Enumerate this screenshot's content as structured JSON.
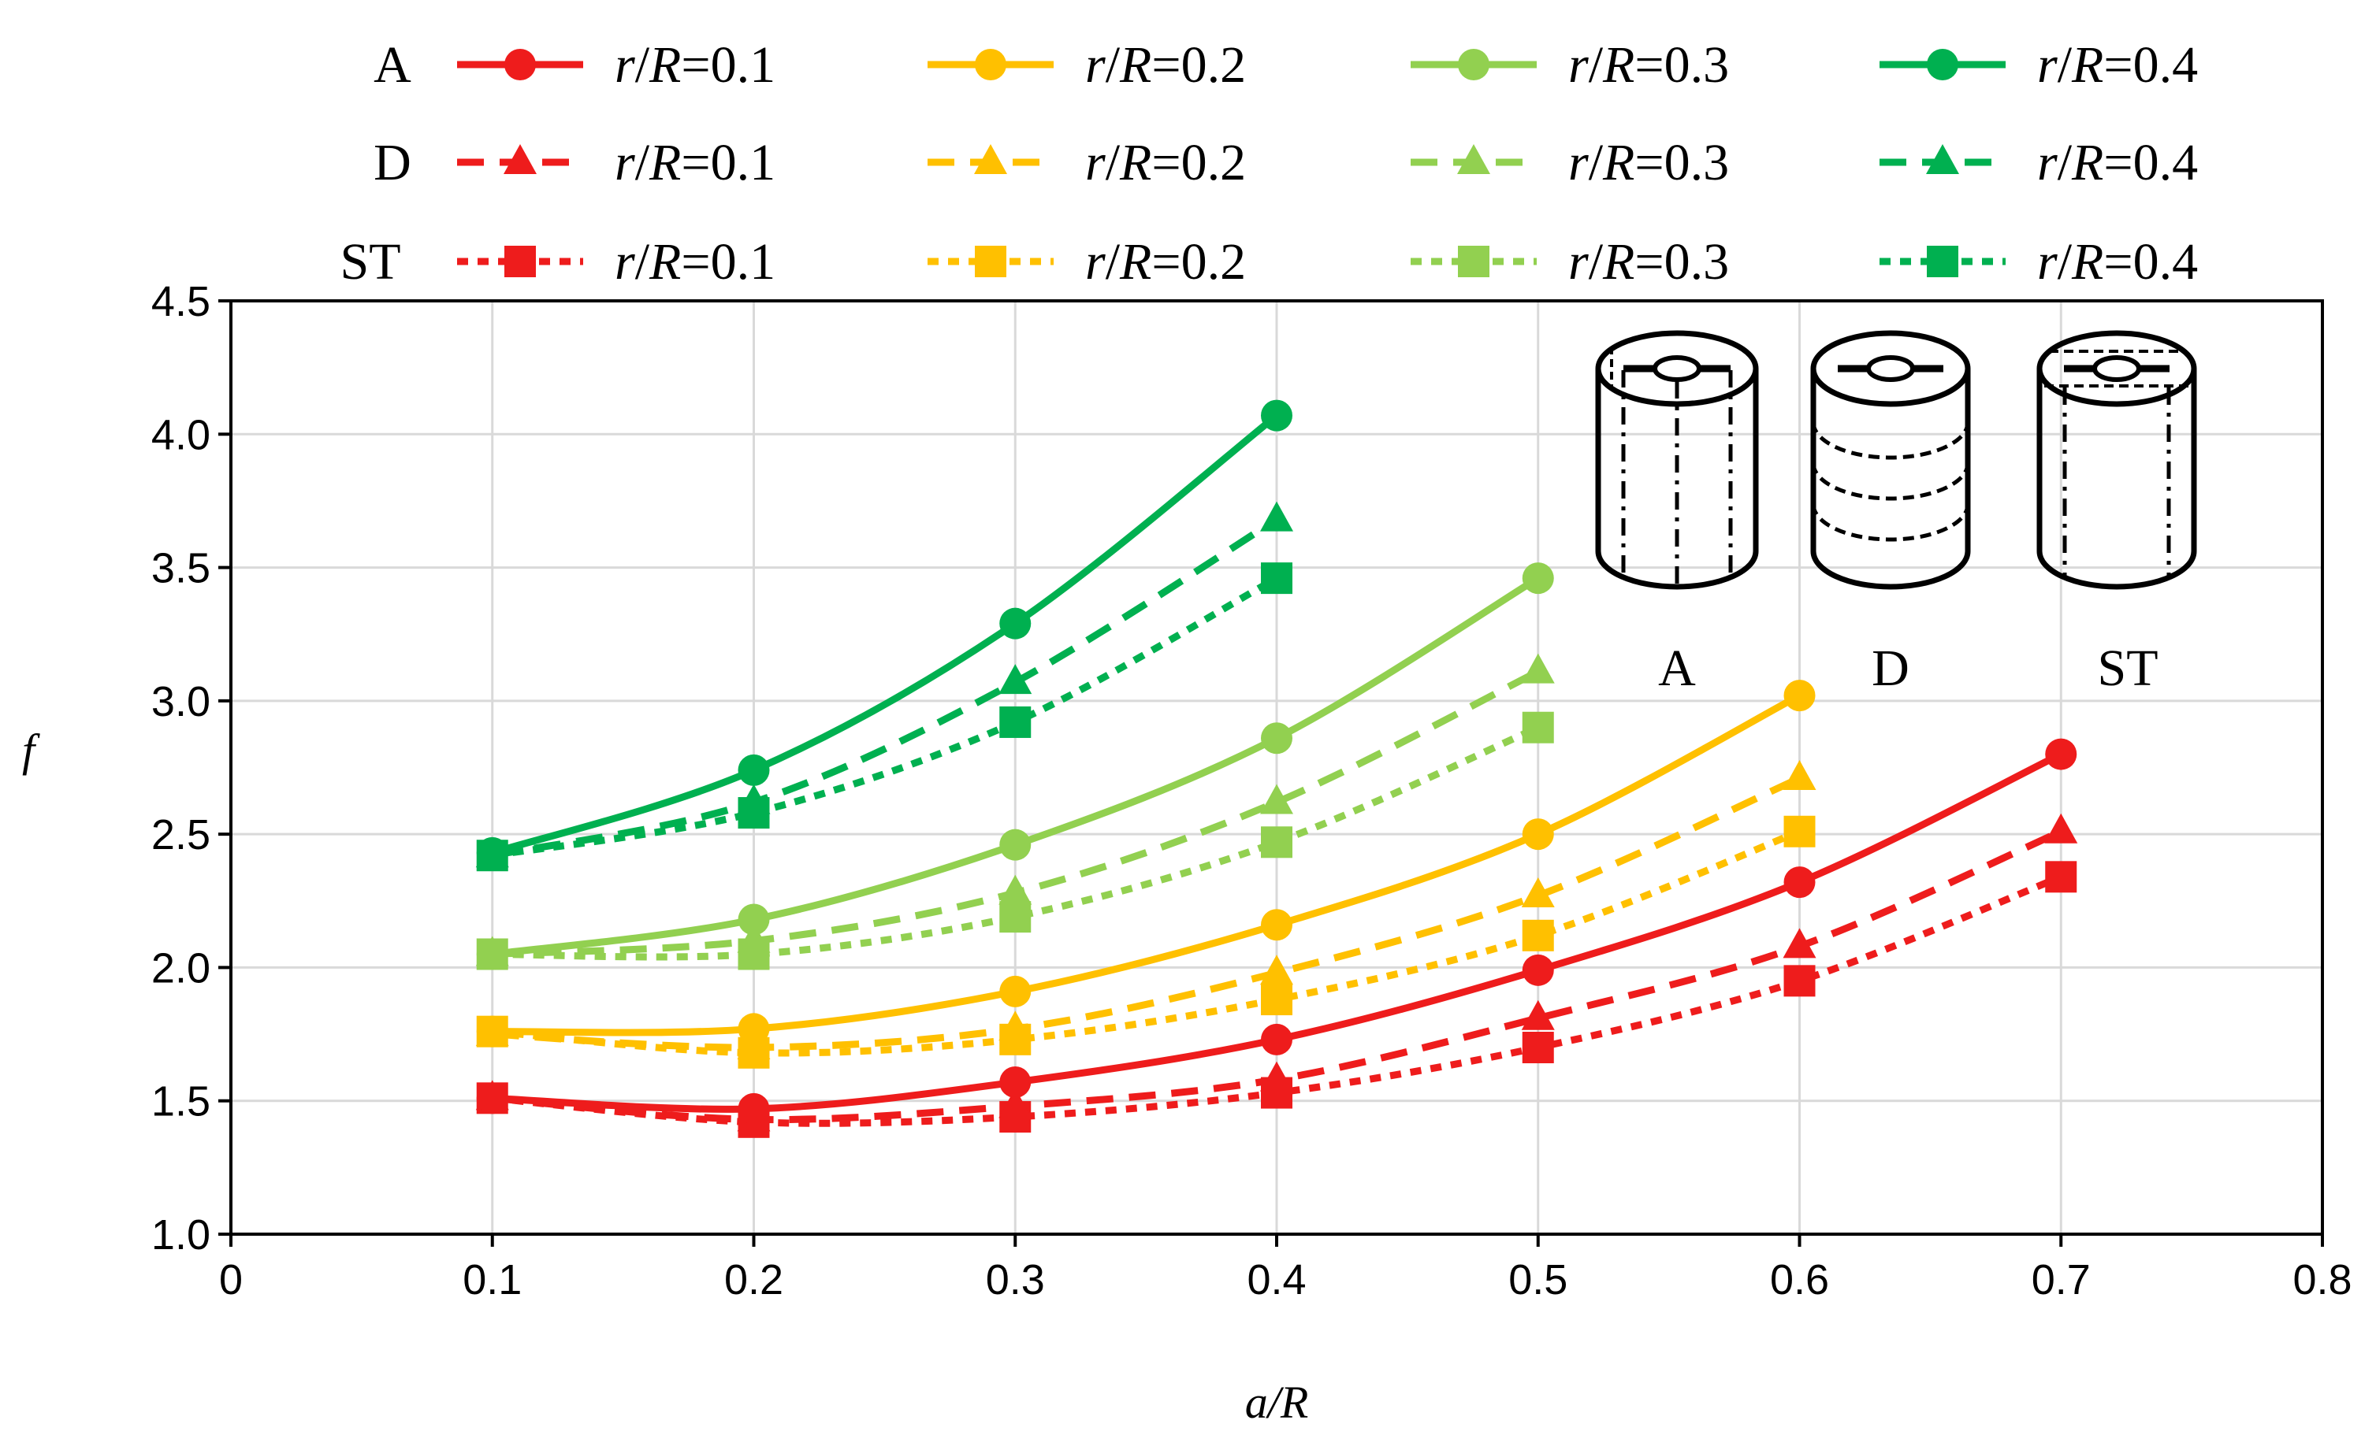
{
  "chart_data": {
    "type": "line",
    "title": "",
    "xlabel": "a/R",
    "ylabel": "f",
    "xlim": [
      0,
      0.8
    ],
    "ylim": [
      1.0,
      4.5
    ],
    "xticks": [
      "0",
      "0.1",
      "0.2",
      "0.3",
      "0.4",
      "0.5",
      "0.6",
      "0.7",
      "0.8"
    ],
    "yticks": [
      "1.0",
      "1.5",
      "2.0",
      "2.5",
      "3.0",
      "3.5",
      "4.0",
      "4.5"
    ],
    "grid": true,
    "legend_position": "top",
    "legend_rows": [
      {
        "label": "A",
        "line_style": "solid",
        "marker": "circle"
      },
      {
        "label": "D",
        "line_style": "dashed",
        "marker": "triangle"
      },
      {
        "label": "ST",
        "line_style": "dotted",
        "marker": "square"
      }
    ],
    "legend_entries": [
      "r/R=0.1",
      "r/R=0.2",
      "r/R=0.3",
      "r/R=0.4"
    ],
    "colors": {
      "r/R=0.1": "#ee1c1c",
      "r/R=0.2": "#ffc000",
      "r/R=0.3": "#92d050",
      "r/R=0.4": "#00b050"
    },
    "series": [
      {
        "name": "r/R=0.1",
        "type": "A",
        "x": [
          0.1,
          0.2,
          0.3,
          0.4,
          0.5,
          0.6,
          0.7
        ],
        "y": [
          1.51,
          1.47,
          1.57,
          1.73,
          1.99,
          2.32,
          2.8
        ]
      },
      {
        "name": "r/R=0.2",
        "type": "A",
        "x": [
          0.1,
          0.2,
          0.3,
          0.4,
          0.5,
          0.6
        ],
        "y": [
          1.76,
          1.77,
          1.91,
          2.16,
          2.5,
          3.02
        ]
      },
      {
        "name": "r/R=0.3",
        "type": "A",
        "x": [
          0.1,
          0.2,
          0.3,
          0.4,
          0.5
        ],
        "y": [
          2.05,
          2.18,
          2.46,
          2.86,
          3.46
        ]
      },
      {
        "name": "r/R=0.4",
        "type": "A",
        "x": [
          0.1,
          0.2,
          0.3,
          0.4
        ],
        "y": [
          2.43,
          2.74,
          3.29,
          4.07
        ]
      },
      {
        "name": "r/R=0.1",
        "type": "D",
        "x": [
          0.1,
          0.2,
          0.3,
          0.4,
          0.5,
          0.6,
          0.7
        ],
        "y": [
          1.51,
          1.43,
          1.48,
          1.58,
          1.81,
          2.08,
          2.51
        ]
      },
      {
        "name": "r/R=0.2",
        "type": "D",
        "x": [
          0.1,
          0.2,
          0.3,
          0.4,
          0.5,
          0.6
        ],
        "y": [
          1.75,
          1.7,
          1.77,
          1.98,
          2.27,
          2.71
        ]
      },
      {
        "name": "r/R=0.3",
        "type": "D",
        "x": [
          0.1,
          0.2,
          0.3,
          0.4,
          0.5
        ],
        "y": [
          2.05,
          2.1,
          2.28,
          2.62,
          3.11
        ]
      },
      {
        "name": "r/R=0.4",
        "type": "D",
        "x": [
          0.1,
          0.2,
          0.3,
          0.4
        ],
        "y": [
          2.42,
          2.62,
          3.07,
          3.68
        ]
      },
      {
        "name": "r/R=0.1",
        "type": "ST",
        "x": [
          0.1,
          0.2,
          0.3,
          0.4,
          0.5,
          0.6,
          0.7
        ],
        "y": [
          1.51,
          1.42,
          1.44,
          1.53,
          1.7,
          1.95,
          2.34
        ]
      },
      {
        "name": "r/R=0.2",
        "type": "ST",
        "x": [
          0.1,
          0.2,
          0.3,
          0.4,
          0.5,
          0.6
        ],
        "y": [
          1.76,
          1.68,
          1.73,
          1.88,
          2.12,
          2.51
        ]
      },
      {
        "name": "r/R=0.3",
        "type": "ST",
        "x": [
          0.1,
          0.2,
          0.3,
          0.4,
          0.5
        ],
        "y": [
          2.05,
          2.05,
          2.19,
          2.47,
          2.9
        ]
      },
      {
        "name": "r/R=0.4",
        "type": "ST",
        "x": [
          0.1,
          0.2,
          0.3,
          0.4
        ],
        "y": [
          2.42,
          2.58,
          2.92,
          3.46
        ]
      }
    ]
  },
  "inset": {
    "labels": [
      "A",
      "D",
      "ST"
    ]
  }
}
